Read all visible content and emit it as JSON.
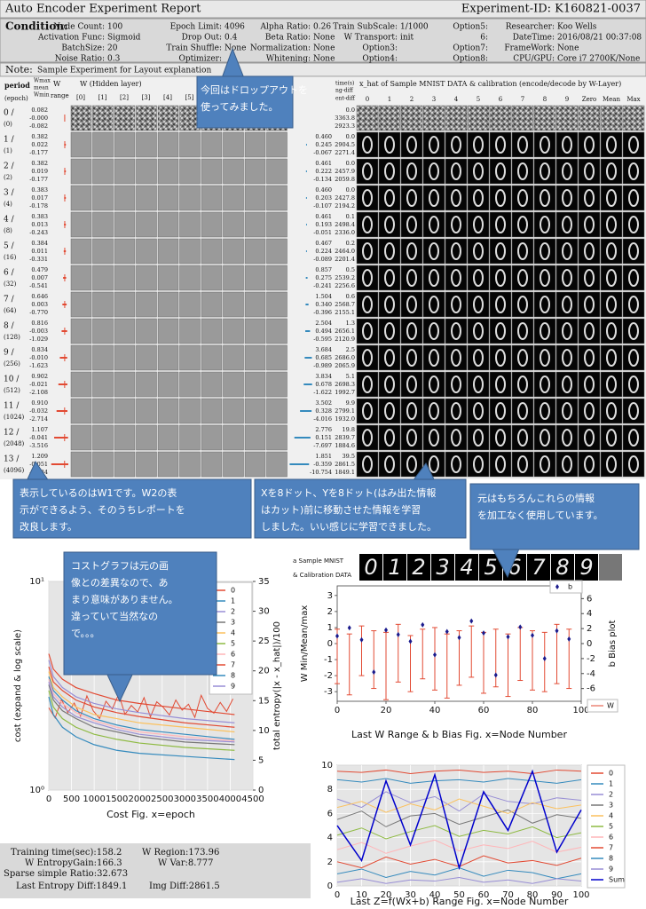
{
  "header": {
    "title": "Auto Encoder Experiment Report",
    "experiment_id": "Experiment-ID: K160821-0037"
  },
  "condition": {
    "label": "Condition:",
    "columns": [
      [
        {
          "key": "Node Count:",
          "value": "100"
        },
        {
          "key": "Activation Func:",
          "value": "Sigmoid"
        },
        {
          "key": "BatchSize:",
          "value": "20"
        },
        {
          "key": "Noise Ratio:",
          "value": "0.3"
        }
      ],
      [
        {
          "key": "Epoch Limit:",
          "value": "4096"
        },
        {
          "key": "Drop Out:",
          "value": "0.4"
        },
        {
          "key": "Train Shuffle:",
          "value": "None"
        },
        {
          "key": "Optimizer:",
          "value": ""
        }
      ],
      [
        {
          "key": "Alpha Ratio:",
          "value": "0.26"
        },
        {
          "key": "Beta Ratio:",
          "value": "None"
        },
        {
          "key": "Normalization:",
          "value": "None"
        },
        {
          "key": "Whitening:",
          "value": "None"
        }
      ],
      [
        {
          "key": "Train SubScale:",
          "value": "1/1000"
        },
        {
          "key": "W Transport:",
          "value": "init"
        },
        {
          "key": "Option3:",
          "value": ""
        },
        {
          "key": "Option4:",
          "value": ""
        }
      ],
      [
        {
          "key": "Option5:",
          "value": ""
        },
        {
          "key": "6:",
          "value": ""
        },
        {
          "key": "Option7:",
          "value": ""
        },
        {
          "key": "Option8:",
          "value": ""
        }
      ],
      [
        {
          "key": "Researcher:",
          "value": "Koo Wells"
        },
        {
          "key": "DateTime:",
          "value": "2016/08/21 00:37:08"
        },
        {
          "key": "FrameWork:",
          "value": "None"
        },
        {
          "key": "CPU/GPU:",
          "value": "Core i7 2700K/None"
        }
      ]
    ]
  },
  "note": {
    "label": "Note:",
    "text": "Sample Experiment for Layout explanation"
  },
  "grid": {
    "headers": {
      "period": "period",
      "epoch": "(epoch)",
      "wmax": "Wmax",
      "mean": "mean",
      "wmin": "Wmin",
      "w": "W",
      "range": "range",
      "hidden": "W (Hidden layer)",
      "hidden_cols": [
        "[0]",
        "[1]",
        "[2]",
        "[3]",
        "[4]",
        "[5]"
      ],
      "time": "time(s)",
      "ng_diff": "ng-diff",
      "ent_diff": "ent-diff",
      "xhat": "x_hat of Sample MNIST DATA & calibration (encode/decode by W-Layer)",
      "xhat_cols": [
        "0",
        "1",
        "2",
        "3",
        "4",
        "5",
        "6",
        "7",
        "8",
        "9",
        "Zero",
        "Mean",
        "Max"
      ]
    },
    "rows": [
      {
        "period": "0 /",
        "epoch": "(0)",
        "w": [
          "0.082",
          "-0.000",
          "-0.082"
        ],
        "diff": [
          "0.0",
          "3363.8",
          "2923.3"
        ]
      },
      {
        "period": "1 /",
        "epoch": "(1)",
        "w": [
          "0.382",
          "0.022",
          "-0.177"
        ],
        "b": [
          "0.460",
          "0.245",
          "-0.067"
        ],
        "diff": [
          "0.0",
          "2904.5",
          "2271.4"
        ]
      },
      {
        "period": "2 /",
        "epoch": "(2)",
        "w": [
          "0.382",
          "0.019",
          "-0.177"
        ],
        "b": [
          "0.461",
          "0.222",
          "-0.134"
        ],
        "diff": [
          "0.0",
          "2457.9",
          "2059.8"
        ]
      },
      {
        "period": "3 /",
        "epoch": "(4)",
        "w": [
          "0.383",
          "0.017",
          "-0.178"
        ],
        "b": [
          "0.460",
          "0.203",
          "-0.107"
        ],
        "diff": [
          "0.0",
          "2427.8",
          "2194.2"
        ]
      },
      {
        "period": "4 /",
        "epoch": "(8)",
        "w": [
          "0.383",
          "0.013",
          "-0.243"
        ],
        "b": [
          "0.461",
          "0.193",
          "-0.051"
        ],
        "diff": [
          "0.1",
          "2498.4",
          "2336.0"
        ]
      },
      {
        "period": "5 /",
        "epoch": "(16)",
        "w": [
          "0.384",
          "0.011",
          "-0.331"
        ],
        "b": [
          "0.467",
          "0.224",
          "-0.089"
        ],
        "diff": [
          "0.2",
          "2464.0",
          "2201.4"
        ]
      },
      {
        "period": "6 /",
        "epoch": "(32)",
        "w": [
          "0.479",
          "0.007",
          "-0.541"
        ],
        "b": [
          "0.857",
          "0.275",
          "-0.241"
        ],
        "diff": [
          "0.5",
          "2539.2",
          "2256.6"
        ]
      },
      {
        "period": "7 /",
        "epoch": "(64)",
        "w": [
          "0.646",
          "0.003",
          "-0.770"
        ],
        "b": [
          "1.504",
          "0.340",
          "-0.396"
        ],
        "diff": [
          "0.6",
          "2568.7",
          "2155.1"
        ]
      },
      {
        "period": "8 /",
        "epoch": "(128)",
        "w": [
          "0.816",
          "-0.003",
          "-1.029"
        ],
        "b": [
          "2.504",
          "0.494",
          "-0.595"
        ],
        "diff": [
          "1.3",
          "2656.1",
          "2120.9"
        ]
      },
      {
        "period": "9 /",
        "epoch": "(256)",
        "w": [
          "0.834",
          "-0.010",
          "-1.623"
        ],
        "b": [
          "3.684",
          "0.685",
          "-0.989"
        ],
        "diff": [
          "2.5",
          "2686.0",
          "2065.9"
        ]
      },
      {
        "period": "10 /",
        "epoch": "(512)",
        "w": [
          "0.902",
          "-0.021",
          "-2.108"
        ],
        "b": [
          "3.834",
          "0.678",
          "-1.622"
        ],
        "diff": [
          "5.1",
          "2698.3",
          "1992.7"
        ]
      },
      {
        "period": "11 /",
        "epoch": "(1024)",
        "w": [
          "0.910",
          "-0.032",
          "-2.714"
        ],
        "b": [
          "3.502",
          "0.328",
          "-4.016"
        ],
        "diff": [
          "9.9",
          "2799.1",
          "1932.0"
        ]
      },
      {
        "period": "12 /",
        "epoch": "(2048)",
        "w": [
          "1.107",
          "-0.041",
          "-3.516"
        ],
        "b": [
          "2.776",
          "0.151",
          "-7.697"
        ],
        "diff": [
          "19.8",
          "2839.7",
          "1884.6"
        ]
      },
      {
        "period": "13 /",
        "epoch": "(4096)",
        "w": [
          "1.209",
          "-0.051",
          "-4.484"
        ],
        "b": [
          "1.851",
          "-0.359",
          "-10.754"
        ],
        "diff": [
          "39.5",
          "2861.5",
          "1849.1"
        ]
      }
    ]
  },
  "callouts": [
    {
      "lines": [
        "今回はドロップアウトを",
        "使ってみました。"
      ]
    },
    {
      "lines": [
        "表示しているのはW1です。W2の表",
        "示ができるよう、そのうちレポートを",
        "改良します。"
      ]
    },
    {
      "lines": [
        "Xを8ドット、Yを8ドット(はみ出た情報",
        "はカット)前に移動させた情報を学習",
        "しました。いい感じに学習できました。"
      ]
    },
    {
      "lines": [
        "元はもちろんこれらの情報",
        "を加工なく使用しています。"
      ]
    },
    {
      "lines": [
        "コストグラフは元の画",
        "像との差異なので、あ",
        "まり意味がありません。",
        "違っていて当然なの",
        "で。。。"
      ]
    }
  ],
  "sample": {
    "labels": [
      "a Sample MNIST",
      "& Calibration DATA"
    ],
    "digits": [
      "0",
      "1",
      "2",
      "3",
      "4",
      "5",
      "6",
      "7",
      "8",
      "9"
    ]
  },
  "charts": {
    "cost": {
      "type": "line",
      "xlabel": "Cost Fig.  x=epoch",
      "ylabel": "cost  (expand & log scale)",
      "y2label": "total entropy(|x - x_hat|)/100",
      "xlim": [
        0,
        4500
      ],
      "xticks": [
        0,
        500,
        1000,
        1500,
        2000,
        2500,
        3000,
        3500,
        4000,
        4500
      ],
      "ylim": [
        1,
        10
      ],
      "log_y": true,
      "yticks": [
        {
          "value": 1,
          "label": "10⁰"
        },
        {
          "value": 10,
          "label": "10¹"
        }
      ],
      "y2lim": [
        0,
        35
      ],
      "y2ticks": [
        0,
        5,
        10,
        15,
        20,
        25,
        30,
        35
      ],
      "grid": true,
      "x": [
        0,
        100,
        300,
        600,
        1000,
        1500,
        2000,
        3000,
        4096
      ],
      "series": [
        {
          "name": "0",
          "color": "#e24a33",
          "values": [
            3.9,
            3.3,
            3.0,
            2.7,
            2.5,
            2.35,
            2.25,
            2.1,
            2.0
          ]
        },
        {
          "name": "1",
          "color": "#348abd",
          "values": [
            3.5,
            3.0,
            2.7,
            2.4,
            2.2,
            2.05,
            1.95,
            1.85,
            1.75
          ]
        },
        {
          "name": "2",
          "color": "#988ed5",
          "values": [
            4.2,
            3.5,
            3.1,
            2.8,
            2.6,
            2.45,
            2.35,
            2.2,
            2.1
          ]
        },
        {
          "name": "3",
          "color": "#777777",
          "values": [
            3.2,
            2.7,
            2.4,
            2.2,
            2.0,
            1.9,
            1.8,
            1.7,
            1.65
          ]
        },
        {
          "name": "4",
          "color": "#fbc15e",
          "values": [
            3.7,
            3.1,
            2.8,
            2.5,
            2.3,
            2.2,
            2.1,
            2.0,
            1.9
          ]
        },
        {
          "name": "5",
          "color": "#8eba42",
          "values": [
            3.0,
            2.5,
            2.2,
            2.0,
            1.85,
            1.75,
            1.68,
            1.6,
            1.55
          ]
        },
        {
          "name": "6",
          "color": "#ffb5b8",
          "values": [
            3.4,
            2.9,
            2.6,
            2.35,
            2.15,
            2.0,
            1.9,
            1.8,
            1.72
          ]
        },
        {
          "name": "7",
          "color": "#e24a33",
          "values": [
            4.5,
            3.8,
            3.4,
            3.1,
            2.9,
            2.7,
            2.6,
            2.45,
            2.3
          ]
        },
        {
          "name": "8",
          "color": "#348abd",
          "values": [
            2.8,
            2.3,
            2.0,
            1.8,
            1.65,
            1.55,
            1.5,
            1.45,
            1.4
          ]
        },
        {
          "name": "9",
          "color": "#988ed5",
          "values": [
            3.3,
            2.8,
            2.5,
            2.25,
            2.1,
            1.95,
            1.85,
            1.75,
            1.7
          ]
        }
      ],
      "entropy": {
        "color": "#e24a33",
        "axis": "y2",
        "x": [
          0,
          140,
          280,
          420,
          560,
          700,
          840,
          980,
          1120,
          1260,
          1400,
          1540,
          1680,
          1820,
          1960,
          2100,
          2240,
          2380,
          2520,
          2660,
          2800,
          2940,
          3080,
          3220,
          3360,
          3500,
          3640,
          3780,
          3920,
          4060
        ],
        "values": [
          13.8,
          12.1,
          15.2,
          13.0,
          14.6,
          12.4,
          15.8,
          13.3,
          12.0,
          14.9,
          13.6,
          16.1,
          12.7,
          14.2,
          13.1,
          15.5,
          12.3,
          14.8,
          13.9,
          12.6,
          15.1,
          13.4,
          14.4,
          12.2,
          15.9,
          13.7,
          12.9,
          14.7,
          13.2,
          15.3
        ]
      }
    },
    "wrange": {
      "type": "errorbar",
      "xlabel": "Last W Range & b Bias Fig.  x=Node Number",
      "ylabel": "W Min/Mean/max",
      "y2label": "b Bias plot",
      "xlim": [
        0,
        100
      ],
      "xticks": [
        0,
        20,
        40,
        60,
        80,
        100
      ],
      "ylim": [
        -3.6,
        3.6
      ],
      "yticks": [
        -3,
        -2,
        -1,
        0,
        1,
        2,
        3
      ],
      "y2lim": [
        -7.7,
        7.7
      ],
      "y2ticks": [
        -6,
        -4,
        -2,
        0,
        2,
        4,
        6
      ],
      "w_name": "W",
      "w_color": "#e24a33",
      "b_name": "b",
      "b_color": "#1a1a8c",
      "x": [
        0,
        5,
        10,
        15,
        20,
        25,
        30,
        35,
        40,
        45,
        50,
        55,
        60,
        65,
        70,
        75,
        80,
        85,
        90,
        95
      ],
      "wmax": [
        0.9,
        0.6,
        1.1,
        0.8,
        0.7,
        1.2,
        0.5,
        0.9,
        1.0,
        0.6,
        0.8,
        1.1,
        0.7,
        0.9,
        0.6,
        1.0,
        0.8,
        0.7,
        1.2,
        0.9
      ],
      "wmean": [
        0.0,
        -0.1,
        0.05,
        0.0,
        -0.05,
        0.0,
        0.1,
        -0.1,
        0.0,
        0.05,
        -0.05,
        0.0,
        0.0,
        0.05,
        -0.1,
        0.0,
        0.05,
        0.0,
        -0.05,
        0.0
      ],
      "wmin": [
        -2.5,
        -3.2,
        -2.0,
        -2.8,
        -3.5,
        -2.4,
        -3.0,
        -2.2,
        -2.9,
        -3.4,
        -2.6,
        -2.1,
        -3.1,
        -2.7,
        -3.3,
        -2.3,
        -2.9,
        -3.0,
        -2.5,
        -2.8
      ],
      "b": [
        1.0,
        2.1,
        0.5,
        -3.8,
        1.8,
        1.2,
        0.3,
        2.5,
        -1.5,
        1.6,
        0.8,
        3.0,
        1.4,
        -4.2,
        0.9,
        2.2,
        1.1,
        -2.0,
        1.7,
        0.6
      ]
    },
    "z": {
      "type": "line",
      "xlabel": "Last Z=f(Wx+b) Range Fig.  x=Node Number",
      "xlim": [
        0,
        100
      ],
      "xticks": [
        0,
        10,
        20,
        30,
        40,
        50,
        60,
        70,
        80,
        90,
        100
      ],
      "ylim": [
        0,
        10
      ],
      "yticks": [
        0,
        2,
        4,
        6,
        8,
        10
      ],
      "grid": true,
      "x": [
        0,
        10,
        20,
        30,
        40,
        50,
        60,
        70,
        80,
        90,
        100
      ],
      "series": [
        {
          "name": "0",
          "color": "#e24a33",
          "values": [
            9.5,
            9.4,
            9.6,
            9.3,
            9.5,
            9.6,
            9.4,
            9.5,
            9.3,
            9.6,
            9.5
          ]
        },
        {
          "name": "1",
          "color": "#348abd",
          "values": [
            8.8,
            8.6,
            8.9,
            8.5,
            8.7,
            8.8,
            8.6,
            8.9,
            8.7,
            8.5,
            8.8
          ]
        },
        {
          "name": "2",
          "color": "#988ed5",
          "values": [
            7.2,
            6.5,
            7.8,
            6.9,
            7.4,
            6.2,
            7.6,
            7.0,
            6.8,
            7.3,
            7.1
          ]
        },
        {
          "name": "3",
          "color": "#777777",
          "values": [
            5.5,
            6.2,
            4.9,
            5.8,
            6.0,
            5.1,
            5.7,
            6.3,
            5.2,
            5.9,
            5.6
          ]
        },
        {
          "name": "4",
          "color": "#fbc15e",
          "values": [
            6.5,
            7.0,
            6.1,
            6.8,
            6.3,
            7.2,
            6.6,
            6.0,
            6.9,
            6.4,
            6.7
          ]
        },
        {
          "name": "5",
          "color": "#8eba42",
          "values": [
            4.2,
            4.8,
            3.9,
            4.5,
            5.0,
            4.1,
            4.6,
            4.3,
            4.9,
            4.0,
            4.4
          ]
        },
        {
          "name": "6",
          "color": "#ffb5b8",
          "values": [
            3.0,
            3.6,
            2.7,
            3.3,
            3.8,
            2.9,
            3.4,
            3.1,
            3.7,
            2.8,
            3.2
          ]
        },
        {
          "name": "7",
          "color": "#e24a33",
          "values": [
            2.0,
            1.5,
            2.4,
            1.8,
            2.2,
            1.6,
            2.5,
            1.9,
            2.1,
            1.7,
            2.3
          ]
        },
        {
          "name": "8",
          "color": "#348abd",
          "values": [
            1.0,
            1.4,
            0.7,
            1.2,
            0.9,
            1.5,
            0.8,
            1.3,
            1.1,
            0.6,
            1.0
          ]
        },
        {
          "name": "9",
          "color": "#988ed5",
          "values": [
            0.3,
            0.6,
            0.2,
            0.5,
            0.4,
            0.7,
            0.3,
            0.5,
            0.2,
            0.6,
            0.4
          ]
        },
        {
          "name": "Sum",
          "color": "#0000cc",
          "values": [
            5.0,
            2.1,
            8.7,
            3.4,
            9.2,
            1.5,
            7.8,
            4.6,
            9.5,
            2.8,
            6.3
          ]
        }
      ]
    }
  },
  "stats": [
    {
      "key": "Training time(sec):",
      "value": "158.2"
    },
    {
      "key": "W Region:",
      "value": "173.96"
    },
    {
      "key": "W EntropyGain:",
      "value": "166.3"
    },
    {
      "key": "W Var:",
      "value": "8.777"
    },
    {
      "key": "Sparse simple Ratio:",
      "value": "32.673"
    },
    {
      "key": "Last Entropy Diff:",
      "value": "1849.1"
    },
    {
      "key": "Img Diff:",
      "value": "2861.5"
    }
  ]
}
